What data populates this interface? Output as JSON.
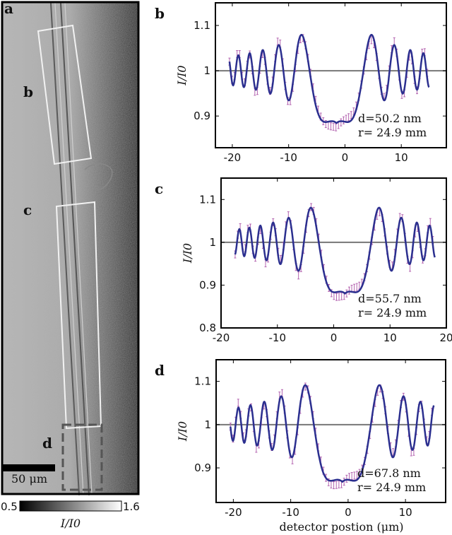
{
  "image_panel": {
    "letter": "a",
    "region_labels": [
      "b",
      "c",
      "d"
    ],
    "scalebar_label": "50 μm",
    "colorbar": {
      "min_label": "0.5",
      "max_label": "1.6",
      "label": "I/I0"
    }
  },
  "chart_data": [
    {
      "type": "line",
      "panel": "b",
      "ylabel": "I/I0",
      "xlabel": "",
      "xlim": [
        -23,
        18
      ],
      "ylim": [
        0.83,
        1.15
      ],
      "xticks": [
        "-20",
        "-10",
        "0",
        "10"
      ],
      "yticks": [
        "0.9",
        "1",
        "1.1"
      ],
      "xtick_values": [
        -20,
        -10,
        0,
        10
      ],
      "ytick_values": [
        0.9,
        1.0,
        1.1
      ],
      "reference_y": 1.0,
      "annotations": [
        "d=50.2 nm",
        "r= 24.9 mm"
      ],
      "fit": {
        "center": -1.5,
        "amplitude": 0.14,
        "k": 0.095,
        "width": 9.5,
        "xrange": [
          -20.5,
          15
        ]
      },
      "colors": {
        "fit": "#2b2f8f",
        "data": "#b464b0",
        "reference": "#777777"
      }
    },
    {
      "type": "line",
      "panel": "c",
      "ylabel": "I/I0",
      "xlabel": "",
      "xlim": [
        -20,
        20
      ],
      "ylim": [
        0.8,
        1.15
      ],
      "xticks": [
        "-20",
        "-10",
        "0",
        "10",
        "20"
      ],
      "yticks": [
        "0.8",
        "0.9",
        "1",
        "1.1"
      ],
      "xtick_values": [
        -20,
        -10,
        0,
        10,
        20
      ],
      "ytick_values": [
        0.8,
        0.9,
        1.0,
        1.1
      ],
      "reference_y": 1.0,
      "annotations": [
        "d=55.7 nm",
        "r= 24.9 mm"
      ],
      "fit": {
        "center": 2.0,
        "amplitude": 0.145,
        "k": 0.1,
        "width": 9.0,
        "xrange": [
          -17.5,
          18
        ]
      },
      "colors": {
        "fit": "#2b2f8f",
        "data": "#b464b0",
        "reference": "#777777"
      }
    },
    {
      "type": "line",
      "panel": "d",
      "ylabel": "I/I0",
      "xlabel": "detector postion (μm)",
      "xlim": [
        -23,
        17
      ],
      "ylim": [
        0.82,
        1.15
      ],
      "xticks": [
        "-20",
        "-10",
        "0",
        "10"
      ],
      "yticks": [
        "0.9",
        "1",
        "1.1"
      ],
      "xtick_values": [
        -20,
        -10,
        0,
        10
      ],
      "ytick_values": [
        0.9,
        1.0,
        1.1
      ],
      "reference_y": 1.0,
      "annotations": [
        "d=67.8 nm",
        "r= 24.9 mm"
      ],
      "fit": {
        "center": -1.0,
        "amplitude": 0.16,
        "k": 0.088,
        "width": 10.0,
        "xrange": [
          -20.5,
          15
        ]
      },
      "colors": {
        "fit": "#2b2f8f",
        "data": "#b464b0",
        "reference": "#777777"
      }
    }
  ]
}
